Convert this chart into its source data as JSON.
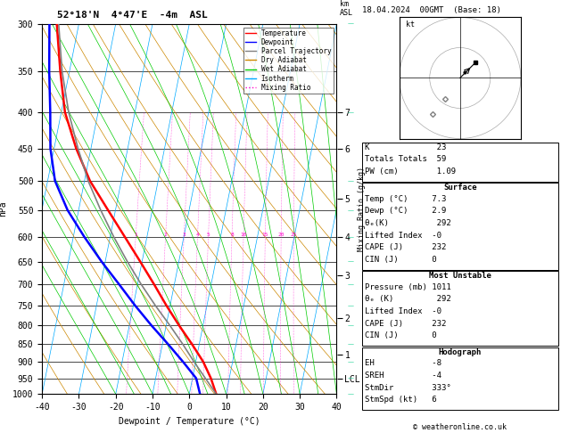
{
  "title_left": "52°18'N  4°47'E  -4m  ASL",
  "title_right": "18.04.2024  00GMT  (Base: 18)",
  "xlabel": "Dewpoint / Temperature (°C)",
  "ylabel_left": "hPa",
  "pressure_levels": [
    300,
    350,
    400,
    450,
    500,
    550,
    600,
    650,
    700,
    750,
    800,
    850,
    900,
    950,
    1000
  ],
  "xmin": -40,
  "xmax": 40,
  "pmin": 300,
  "pmax": 1000,
  "temp_color": "#ff0000",
  "dewp_color": "#0000ff",
  "parcel_color": "#808080",
  "dry_adiabat_color": "#cc8800",
  "wet_adiabat_color": "#00cc00",
  "isotherm_color": "#00aaff",
  "mixing_ratio_color": "#ff00cc",
  "grid_color": "#000000",
  "skew_factor": 20,
  "km_labels": [
    [
      7,
      400
    ],
    [
      6,
      450
    ],
    [
      5,
      530
    ],
    [
      4,
      600
    ],
    [
      3,
      680
    ],
    [
      2,
      780
    ],
    [
      1,
      880
    ],
    [
      "LCL",
      950
    ]
  ],
  "mixing_ratio_values": [
    1,
    2,
    3,
    4,
    5,
    8,
    10,
    15,
    20,
    25
  ],
  "legend_items": [
    {
      "label": "Temperature",
      "color": "#ff0000",
      "style": "solid"
    },
    {
      "label": "Dewpoint",
      "color": "#0000ff",
      "style": "solid"
    },
    {
      "label": "Parcel Trajectory",
      "color": "#808080",
      "style": "solid"
    },
    {
      "label": "Dry Adiabat",
      "color": "#cc8800",
      "style": "solid"
    },
    {
      "label": "Wet Adiabat",
      "color": "#00cc00",
      "style": "solid"
    },
    {
      "label": "Isotherm",
      "color": "#00aaff",
      "style": "solid"
    },
    {
      "label": "Mixing Ratio",
      "color": "#ff00cc",
      "style": "dotted"
    }
  ],
  "temp_profile_p": [
    1000,
    950,
    900,
    850,
    800,
    750,
    700,
    650,
    600,
    550,
    500,
    450,
    400,
    350,
    300
  ],
  "temp_profile_T": [
    7.3,
    5.0,
    2.0,
    -2.0,
    -6.5,
    -11.0,
    -15.5,
    -20.5,
    -26.0,
    -32.0,
    -38.5,
    -44.0,
    -49.0,
    -52.5,
    -56.0
  ],
  "dewp_profile_p": [
    1000,
    950,
    900,
    850,
    800,
    750,
    700,
    650,
    600,
    550,
    500,
    450,
    400,
    350,
    300
  ],
  "dewp_profile_T": [
    2.9,
    1.0,
    -3.5,
    -8.5,
    -14.0,
    -19.5,
    -25.0,
    -31.0,
    -37.0,
    -43.0,
    -48.0,
    -51.0,
    -53.0,
    -55.5,
    -58.0
  ],
  "parcel_p": [
    1000,
    950,
    900,
    850,
    800,
    750,
    700,
    650,
    600,
    550,
    500,
    450,
    400,
    350,
    300
  ],
  "parcel_T": [
    7.3,
    3.5,
    -0.5,
    -4.5,
    -9.0,
    -14.0,
    -19.0,
    -24.0,
    -29.0,
    -34.0,
    -39.0,
    -43.5,
    -48.0,
    -52.0,
    -55.5
  ],
  "stats_K": 23,
  "stats_TT": 59,
  "stats_PW": "1.09",
  "surface_temp": "7.3",
  "surface_dewp": "2.9",
  "surface_theta_e": 292,
  "surface_LI": "-0",
  "surface_CAPE": 232,
  "surface_CIN": 0,
  "mu_pressure": 1011,
  "mu_theta_e": 292,
  "mu_LI": "-0",
  "mu_CAPE": 232,
  "mu_CIN": 0,
  "hodo_EH": -8,
  "hodo_SREH": -4,
  "hodo_StmDir": "333°",
  "hodo_StmSpd": 6,
  "credit": "© weatheronline.co.uk"
}
